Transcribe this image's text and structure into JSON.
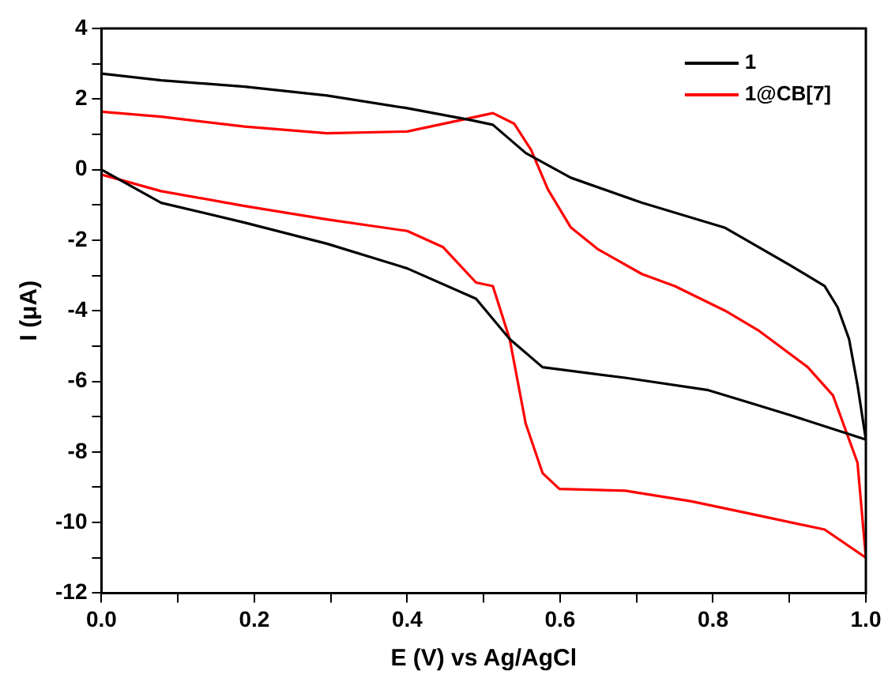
{
  "chart_data": {
    "type": "line",
    "xlabel": "E (V) vs Ag/AgCl",
    "ylabel": "I (μA)",
    "xlim": [
      0,
      1
    ],
    "ylim": [
      -12,
      4
    ],
    "xticks": [
      {
        "value": 0,
        "label": "0.0"
      },
      {
        "value": 0.1,
        "label": null
      },
      {
        "value": 0.2,
        "label": "0.2"
      },
      {
        "value": 0.3,
        "label": null
      },
      {
        "value": 0.4,
        "label": "0.4"
      },
      {
        "value": 0.5,
        "label": null
      },
      {
        "value": 0.6,
        "label": "0.6"
      },
      {
        "value": 0.7,
        "label": null
      },
      {
        "value": 0.8,
        "label": "0.8"
      },
      {
        "value": 0.9,
        "label": null
      },
      {
        "value": 1,
        "label": "1.0"
      }
    ],
    "yticks": [
      -12,
      {
        "value": -11,
        "label": null
      },
      -10,
      {
        "value": -9,
        "label": null
      },
      -8,
      {
        "value": -7,
        "label": null
      },
      -6,
      {
        "value": -5,
        "label": null
      },
      -4,
      {
        "value": -3,
        "label": null
      },
      -2,
      {
        "value": -1,
        "label": null
      },
      0,
      {
        "value": 1,
        "label": null
      },
      2,
      {
        "value": 3,
        "label": null
      },
      4
    ],
    "grid": false,
    "legend": "top right",
    "marker": "none",
    "line_style": "solid",
    "series": [
      {
        "name": "1",
        "color": "#000000",
        "x": [
          0,
          0.078,
          0.187,
          0.295,
          0.4,
          0.49,
          0.534,
          0.577,
          0.685,
          0.794,
          0.9,
          1,
          0.989,
          0.978,
          0.963,
          0.946,
          0.9,
          0.816,
          0.707,
          0.614,
          0.555,
          0.512,
          0.484,
          0.4,
          0.295,
          0.187,
          0.078,
          0
        ],
        "values": [
          0,
          -0.94,
          -1.5,
          -2.1,
          -2.8,
          -3.66,
          -4.8,
          -5.6,
          -5.9,
          -6.25,
          -6.95,
          -7.65,
          -6.1,
          -4.8,
          -3.9,
          -3.3,
          -2.7,
          -1.65,
          -0.94,
          -0.23,
          0.47,
          1.27,
          1.4,
          1.74,
          2.1,
          2.35,
          2.53,
          2.72
        ]
      },
      {
        "name": "1@CB[7]",
        "color": "#ff0000",
        "x": [
          0,
          0.078,
          0.187,
          0.295,
          0.4,
          0.447,
          0.49,
          0.512,
          0.534,
          0.555,
          0.577,
          0.599,
          0.685,
          0.772,
          0.859,
          0.946,
          1,
          0.989,
          0.978,
          0.957,
          0.924,
          0.859,
          0.816,
          0.75,
          0.707,
          0.649,
          0.614,
          0.584,
          0.562,
          0.54,
          0.512,
          0.469,
          0.4,
          0.295,
          0.187,
          0.078,
          0
        ],
        "values": [
          -0.14,
          -0.61,
          -1.03,
          -1.41,
          -1.74,
          -2.2,
          -3.2,
          -3.3,
          -4.8,
          -7.2,
          -8.6,
          -9.05,
          -9.1,
          -9.4,
          -9.8,
          -10.2,
          -11,
          -8.3,
          -7.65,
          -6.4,
          -5.6,
          -4.55,
          -4.0,
          -3.3,
          -2.96,
          -2.25,
          -1.64,
          -0.56,
          0.56,
          1.3,
          1.6,
          1.4,
          1.08,
          1.03,
          1.22,
          1.5,
          1.64
        ]
      }
    ]
  }
}
